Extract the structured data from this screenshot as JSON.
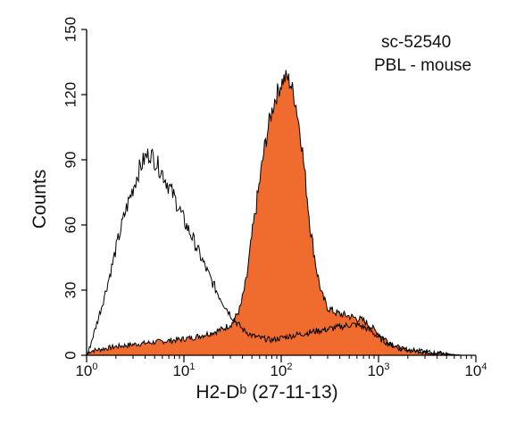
{
  "chart_data": {
    "type": "area",
    "title": "",
    "annotations": [
      "sc-52540",
      "PBL - mouse"
    ],
    "xlabel": "H2-Dᵇ (27-11-13)",
    "ylabel": "Counts",
    "x_scale": "log",
    "xlim": [
      1,
      10000
    ],
    "ylim": [
      0,
      150
    ],
    "x_ticks": [
      {
        "value": 1,
        "base": "10",
        "exp": "0"
      },
      {
        "value": 10,
        "base": "10",
        "exp": "1"
      },
      {
        "value": 100,
        "base": "10",
        "exp": "2"
      },
      {
        "value": 1000,
        "base": "10",
        "exp": "3"
      },
      {
        "value": 10000,
        "base": "10",
        "exp": "4"
      }
    ],
    "y_ticks": [
      "0",
      "30",
      "60",
      "90",
      "120",
      "150"
    ],
    "y_tick_values": [
      0,
      30,
      60,
      90,
      120,
      150
    ],
    "grid": false,
    "series": [
      {
        "style": "outline",
        "color": "#000000",
        "points": [
          [
            1,
            0
          ],
          [
            1.05,
            2
          ],
          [
            1.15,
            8
          ],
          [
            1.3,
            16
          ],
          [
            1.5,
            26
          ],
          [
            1.8,
            40
          ],
          [
            2.1,
            53
          ],
          [
            2.5,
            66
          ],
          [
            3.0,
            77
          ],
          [
            3.5,
            86
          ],
          [
            4.0,
            91
          ],
          [
            4.5,
            93
          ],
          [
            5.0,
            90
          ],
          [
            6.0,
            84
          ],
          [
            7.0,
            78
          ],
          [
            8.5,
            70
          ],
          [
            10,
            62
          ],
          [
            12,
            55
          ],
          [
            15,
            45
          ],
          [
            18,
            37
          ],
          [
            22,
            29
          ],
          [
            27,
            22
          ],
          [
            32,
            17
          ],
          [
            40,
            12
          ],
          [
            50,
            9
          ],
          [
            60,
            8
          ],
          [
            80,
            7
          ],
          [
            100,
            8
          ],
          [
            130,
            9
          ],
          [
            170,
            10
          ],
          [
            220,
            11
          ],
          [
            300,
            12
          ],
          [
            400,
            13
          ],
          [
            500,
            14
          ],
          [
            600,
            14
          ],
          [
            700,
            13
          ],
          [
            850,
            11
          ],
          [
            1000,
            8
          ],
          [
            1300,
            5
          ],
          [
            1700,
            3
          ],
          [
            2500,
            2
          ],
          [
            4000,
            1
          ],
          [
            7000,
            0
          ],
          [
            10000,
            0
          ]
        ]
      },
      {
        "style": "filled",
        "color": "#f06b2e",
        "points": [
          [
            1,
            0
          ],
          [
            1.1,
            2
          ],
          [
            1.5,
            3
          ],
          [
            2,
            4
          ],
          [
            3,
            5
          ],
          [
            5,
            6
          ],
          [
            8,
            7
          ],
          [
            12,
            8
          ],
          [
            18,
            10
          ],
          [
            25,
            12
          ],
          [
            32,
            15
          ],
          [
            38,
            22
          ],
          [
            44,
            35
          ],
          [
            50,
            55
          ],
          [
            58,
            75
          ],
          [
            66,
            93
          ],
          [
            75,
            107
          ],
          [
            85,
            117
          ],
          [
            95,
            123
          ],
          [
            105,
            127
          ],
          [
            115,
            128
          ],
          [
            125,
            125
          ],
          [
            140,
            117
          ],
          [
            160,
            100
          ],
          [
            180,
            78
          ],
          [
            200,
            58
          ],
          [
            230,
            40
          ],
          [
            260,
            28
          ],
          [
            300,
            22
          ],
          [
            350,
            20
          ],
          [
            400,
            19
          ],
          [
            500,
            18
          ],
          [
            600,
            17
          ],
          [
            700,
            16
          ],
          [
            800,
            14
          ],
          [
            1000,
            10
          ],
          [
            1300,
            6
          ],
          [
            1700,
            3
          ],
          [
            2500,
            2
          ],
          [
            4000,
            1
          ],
          [
            7000,
            0
          ],
          [
            10000,
            0
          ]
        ]
      }
    ]
  }
}
